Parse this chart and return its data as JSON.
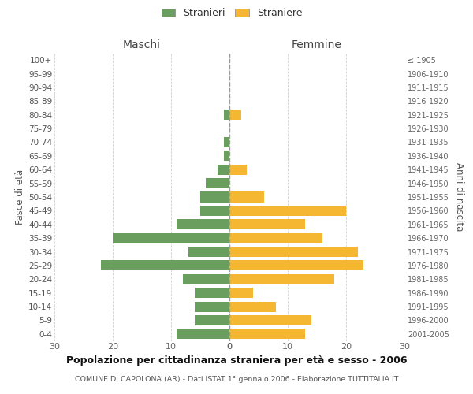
{
  "age_groups": [
    "100+",
    "95-99",
    "90-94",
    "85-89",
    "80-84",
    "75-79",
    "70-74",
    "65-69",
    "60-64",
    "55-59",
    "50-54",
    "45-49",
    "40-44",
    "35-39",
    "30-34",
    "25-29",
    "20-24",
    "15-19",
    "10-14",
    "5-9",
    "0-4"
  ],
  "birth_years": [
    "≤ 1905",
    "1906-1910",
    "1911-1915",
    "1916-1920",
    "1921-1925",
    "1926-1930",
    "1931-1935",
    "1936-1940",
    "1941-1945",
    "1946-1950",
    "1951-1955",
    "1956-1960",
    "1961-1965",
    "1966-1970",
    "1971-1975",
    "1976-1980",
    "1981-1985",
    "1986-1990",
    "1991-1995",
    "1996-2000",
    "2001-2005"
  ],
  "maschi": [
    0,
    0,
    0,
    0,
    1,
    0,
    1,
    1,
    2,
    4,
    5,
    5,
    9,
    20,
    7,
    22,
    8,
    6,
    6,
    6,
    9
  ],
  "femmine": [
    0,
    0,
    0,
    0,
    2,
    0,
    0,
    0,
    3,
    0,
    6,
    20,
    13,
    16,
    22,
    23,
    18,
    4,
    8,
    14,
    13
  ],
  "color_maschi": "#6a9e5e",
  "color_femmine": "#f5b731",
  "title": "Popolazione per cittadinanza straniera per età e sesso - 2006",
  "subtitle": "COMUNE DI CAPOLONA (AR) - Dati ISTAT 1° gennaio 2006 - Elaborazione TUTTITALIA.IT",
  "header_left": "Maschi",
  "header_right": "Femmine",
  "ylabel_left": "Fasce di età",
  "ylabel_right": "Anni di nascita",
  "legend_stranieri": "Stranieri",
  "legend_straniere": "Straniere",
  "xlim": 30,
  "background_color": "#ffffff",
  "grid_color": "#d0d0d0",
  "bar_height": 0.75
}
